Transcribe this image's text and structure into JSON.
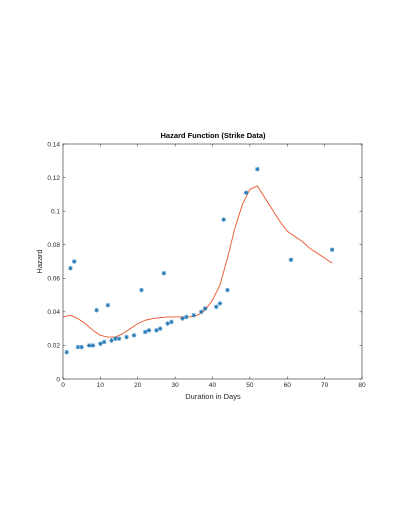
{
  "chart_data": {
    "type": "scatter",
    "title": "Hazard Function (Strike Data)",
    "xlabel": "Duration in Days",
    "ylabel": "Hazard",
    "xlim": [
      0,
      80
    ],
    "ylim": [
      0,
      0.14
    ],
    "xticks": [
      "0",
      "10",
      "20",
      "30",
      "40",
      "50",
      "60",
      "70",
      "80"
    ],
    "yticks": [
      "0",
      "0.02",
      "0.04",
      "0.06",
      "0.08",
      "0.1",
      "0.12",
      "0.14"
    ],
    "grid": false,
    "legend": "none",
    "colors": {
      "markers": "#1f77b4",
      "line": "#e8552a",
      "axes": "#262626"
    },
    "series": [
      {
        "type": "scatter",
        "marker": "*",
        "points": [
          [
            1,
            0.016
          ],
          [
            2,
            0.066
          ],
          [
            3,
            0.07
          ],
          [
            4,
            0.019
          ],
          [
            5,
            0.019
          ],
          [
            7,
            0.02
          ],
          [
            8,
            0.02
          ],
          [
            9,
            0.041
          ],
          [
            10,
            0.021
          ],
          [
            11,
            0.022
          ],
          [
            12,
            0.044
          ],
          [
            13,
            0.023
          ],
          [
            14,
            0.024
          ],
          [
            15,
            0.024
          ],
          [
            17,
            0.025
          ],
          [
            19,
            0.026
          ],
          [
            21,
            0.053
          ],
          [
            22,
            0.028
          ],
          [
            23,
            0.029
          ],
          [
            25,
            0.029
          ],
          [
            26,
            0.03
          ],
          [
            27,
            0.063
          ],
          [
            28,
            0.033
          ],
          [
            29,
            0.034
          ],
          [
            32,
            0.036
          ],
          [
            33,
            0.037
          ],
          [
            35,
            0.038
          ],
          [
            37,
            0.04
          ],
          [
            38,
            0.042
          ],
          [
            41,
            0.043
          ],
          [
            42,
            0.045
          ],
          [
            43,
            0.095
          ],
          [
            44,
            0.053
          ],
          [
            49,
            0.111
          ],
          [
            52,
            0.125
          ],
          [
            61,
            0.071
          ],
          [
            72,
            0.077
          ]
        ]
      },
      {
        "type": "line",
        "points": [
          [
            0,
            0.037
          ],
          [
            2,
            0.038
          ],
          [
            4,
            0.036
          ],
          [
            6,
            0.033
          ],
          [
            8,
            0.029
          ],
          [
            10,
            0.026
          ],
          [
            12,
            0.025
          ],
          [
            14,
            0.025
          ],
          [
            16,
            0.027
          ],
          [
            18,
            0.03
          ],
          [
            20,
            0.033
          ],
          [
            22,
            0.035
          ],
          [
            24,
            0.036
          ],
          [
            26,
            0.0365
          ],
          [
            28,
            0.037
          ],
          [
            30,
            0.037
          ],
          [
            32,
            0.037
          ],
          [
            34,
            0.037
          ],
          [
            36,
            0.038
          ],
          [
            38,
            0.041
          ],
          [
            40,
            0.047
          ],
          [
            42,
            0.056
          ],
          [
            44,
            0.072
          ],
          [
            46,
            0.09
          ],
          [
            48,
            0.104
          ],
          [
            50,
            0.113
          ],
          [
            52,
            0.115
          ],
          [
            54,
            0.108
          ],
          [
            56,
            0.101
          ],
          [
            58,
            0.094
          ],
          [
            60,
            0.088
          ],
          [
            62,
            0.085
          ],
          [
            64,
            0.082
          ],
          [
            66,
            0.078
          ],
          [
            68,
            0.075
          ],
          [
            70,
            0.072
          ],
          [
            72,
            0.069
          ]
        ]
      }
    ]
  }
}
